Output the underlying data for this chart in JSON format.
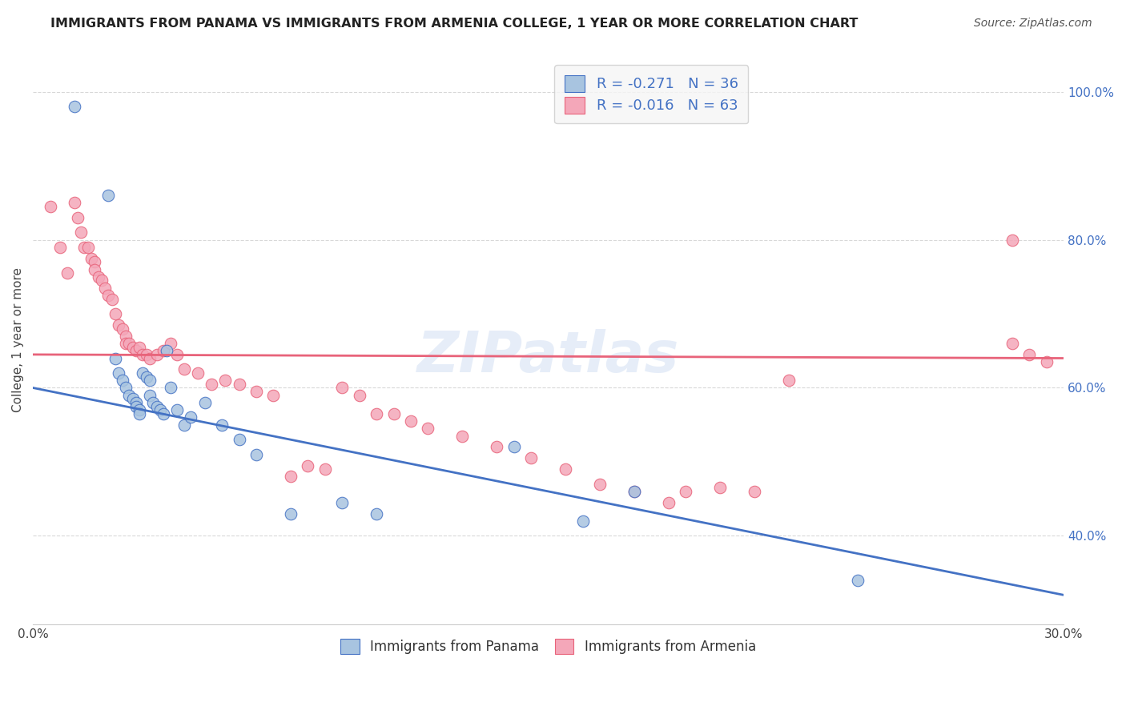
{
  "title": "IMMIGRANTS FROM PANAMA VS IMMIGRANTS FROM ARMENIA COLLEGE, 1 YEAR OR MORE CORRELATION CHART",
  "source": "Source: ZipAtlas.com",
  "ylabel": "College, 1 year or more",
  "xlim": [
    0.0,
    0.3
  ],
  "ylim": [
    0.28,
    1.05
  ],
  "xticks": [
    0.0,
    0.05,
    0.1,
    0.15,
    0.2,
    0.25,
    0.3
  ],
  "xticklabels": [
    "0.0%",
    "",
    "",
    "",
    "",
    "",
    "30.0%"
  ],
  "yticks_right": [
    0.4,
    0.6,
    0.8,
    1.0
  ],
  "yticklabels_right": [
    "40.0%",
    "60.0%",
    "80.0%",
    "100.0%"
  ],
  "yticks_grid": [
    0.4,
    0.6,
    0.8,
    1.0
  ],
  "panama_color": "#a8c4e0",
  "armenia_color": "#f4a7b9",
  "panama_line_color": "#4472c4",
  "armenia_line_color": "#e8637a",
  "legend_panama_label": "R = -0.271   N = 36",
  "legend_armenia_label": "R = -0.016   N = 63",
  "legend_color": "#4472c4",
  "panama_scatter_x": [
    0.012,
    0.022,
    0.024,
    0.025,
    0.026,
    0.027,
    0.028,
    0.029,
    0.03,
    0.03,
    0.031,
    0.031,
    0.032,
    0.033,
    0.034,
    0.034,
    0.035,
    0.036,
    0.037,
    0.038,
    0.039,
    0.04,
    0.042,
    0.044,
    0.046,
    0.05,
    0.055,
    0.06,
    0.065,
    0.075,
    0.09,
    0.1,
    0.14,
    0.16,
    0.175,
    0.24
  ],
  "panama_scatter_y": [
    0.98,
    0.86,
    0.64,
    0.62,
    0.61,
    0.6,
    0.59,
    0.585,
    0.58,
    0.575,
    0.57,
    0.565,
    0.62,
    0.615,
    0.61,
    0.59,
    0.58,
    0.575,
    0.57,
    0.565,
    0.65,
    0.6,
    0.57,
    0.55,
    0.56,
    0.58,
    0.55,
    0.53,
    0.51,
    0.43,
    0.445,
    0.43,
    0.52,
    0.42,
    0.46,
    0.34
  ],
  "armenia_scatter_x": [
    0.005,
    0.008,
    0.01,
    0.012,
    0.013,
    0.014,
    0.015,
    0.016,
    0.017,
    0.018,
    0.018,
    0.019,
    0.02,
    0.021,
    0.022,
    0.023,
    0.024,
    0.025,
    0.026,
    0.027,
    0.027,
    0.028,
    0.029,
    0.03,
    0.031,
    0.032,
    0.033,
    0.034,
    0.036,
    0.038,
    0.04,
    0.042,
    0.044,
    0.048,
    0.052,
    0.056,
    0.06,
    0.065,
    0.07,
    0.075,
    0.08,
    0.085,
    0.09,
    0.095,
    0.1,
    0.105,
    0.11,
    0.115,
    0.125,
    0.135,
    0.145,
    0.155,
    0.165,
    0.175,
    0.185,
    0.19,
    0.2,
    0.21,
    0.22,
    0.285,
    0.285,
    0.29,
    0.295
  ],
  "armenia_scatter_y": [
    0.845,
    0.79,
    0.755,
    0.85,
    0.83,
    0.81,
    0.79,
    0.79,
    0.775,
    0.77,
    0.76,
    0.75,
    0.745,
    0.735,
    0.725,
    0.72,
    0.7,
    0.685,
    0.68,
    0.67,
    0.66,
    0.66,
    0.655,
    0.65,
    0.655,
    0.645,
    0.645,
    0.64,
    0.645,
    0.65,
    0.66,
    0.645,
    0.625,
    0.62,
    0.605,
    0.61,
    0.605,
    0.595,
    0.59,
    0.48,
    0.495,
    0.49,
    0.6,
    0.59,
    0.565,
    0.565,
    0.555,
    0.545,
    0.535,
    0.52,
    0.505,
    0.49,
    0.47,
    0.46,
    0.445,
    0.46,
    0.465,
    0.46,
    0.61,
    0.8,
    0.66,
    0.645,
    0.635
  ],
  "panama_line_x0": 0.0,
  "panama_line_y0": 0.6,
  "panama_line_x1": 0.3,
  "panama_line_y1": 0.32,
  "armenia_line_x0": 0.0,
  "armenia_line_y0": 0.645,
  "armenia_line_x1": 0.3,
  "armenia_line_y1": 0.64,
  "watermark": "ZIPatlas",
  "background_color": "#ffffff",
  "grid_color": "#d8d8d8"
}
